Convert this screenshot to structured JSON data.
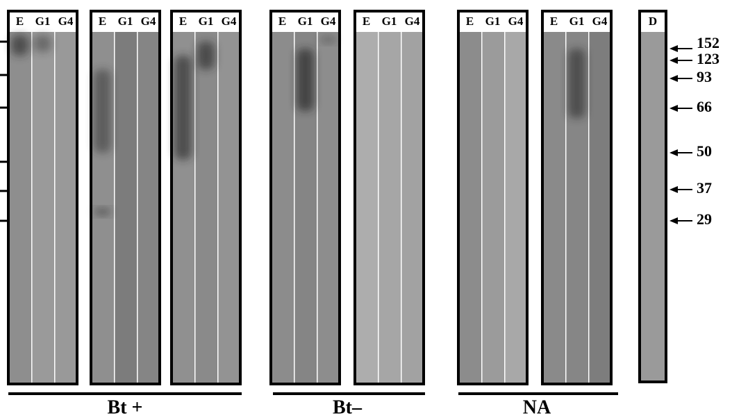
{
  "panels": [
    {
      "lanes": [
        "E",
        "G1",
        "G4"
      ]
    },
    {
      "lanes": [
        "E",
        "G1",
        "G4"
      ]
    },
    {
      "lanes": [
        "E",
        "G1",
        "G4"
      ]
    },
    {
      "lanes": [
        "E",
        "G1",
        "G4"
      ]
    },
    {
      "lanes": [
        "E",
        "G1",
        "G4"
      ]
    },
    {
      "lanes": [
        "E",
        "G1",
        "G4"
      ]
    },
    {
      "lanes": [
        "E",
        "G1",
        "G4"
      ]
    }
  ],
  "marker_panel": {
    "lane": "D"
  },
  "markers": [
    "152",
    "123",
    "93",
    "66",
    "50",
    "37",
    "29"
  ],
  "groups": [
    "Bt +",
    "Bt–",
    "NA"
  ]
}
